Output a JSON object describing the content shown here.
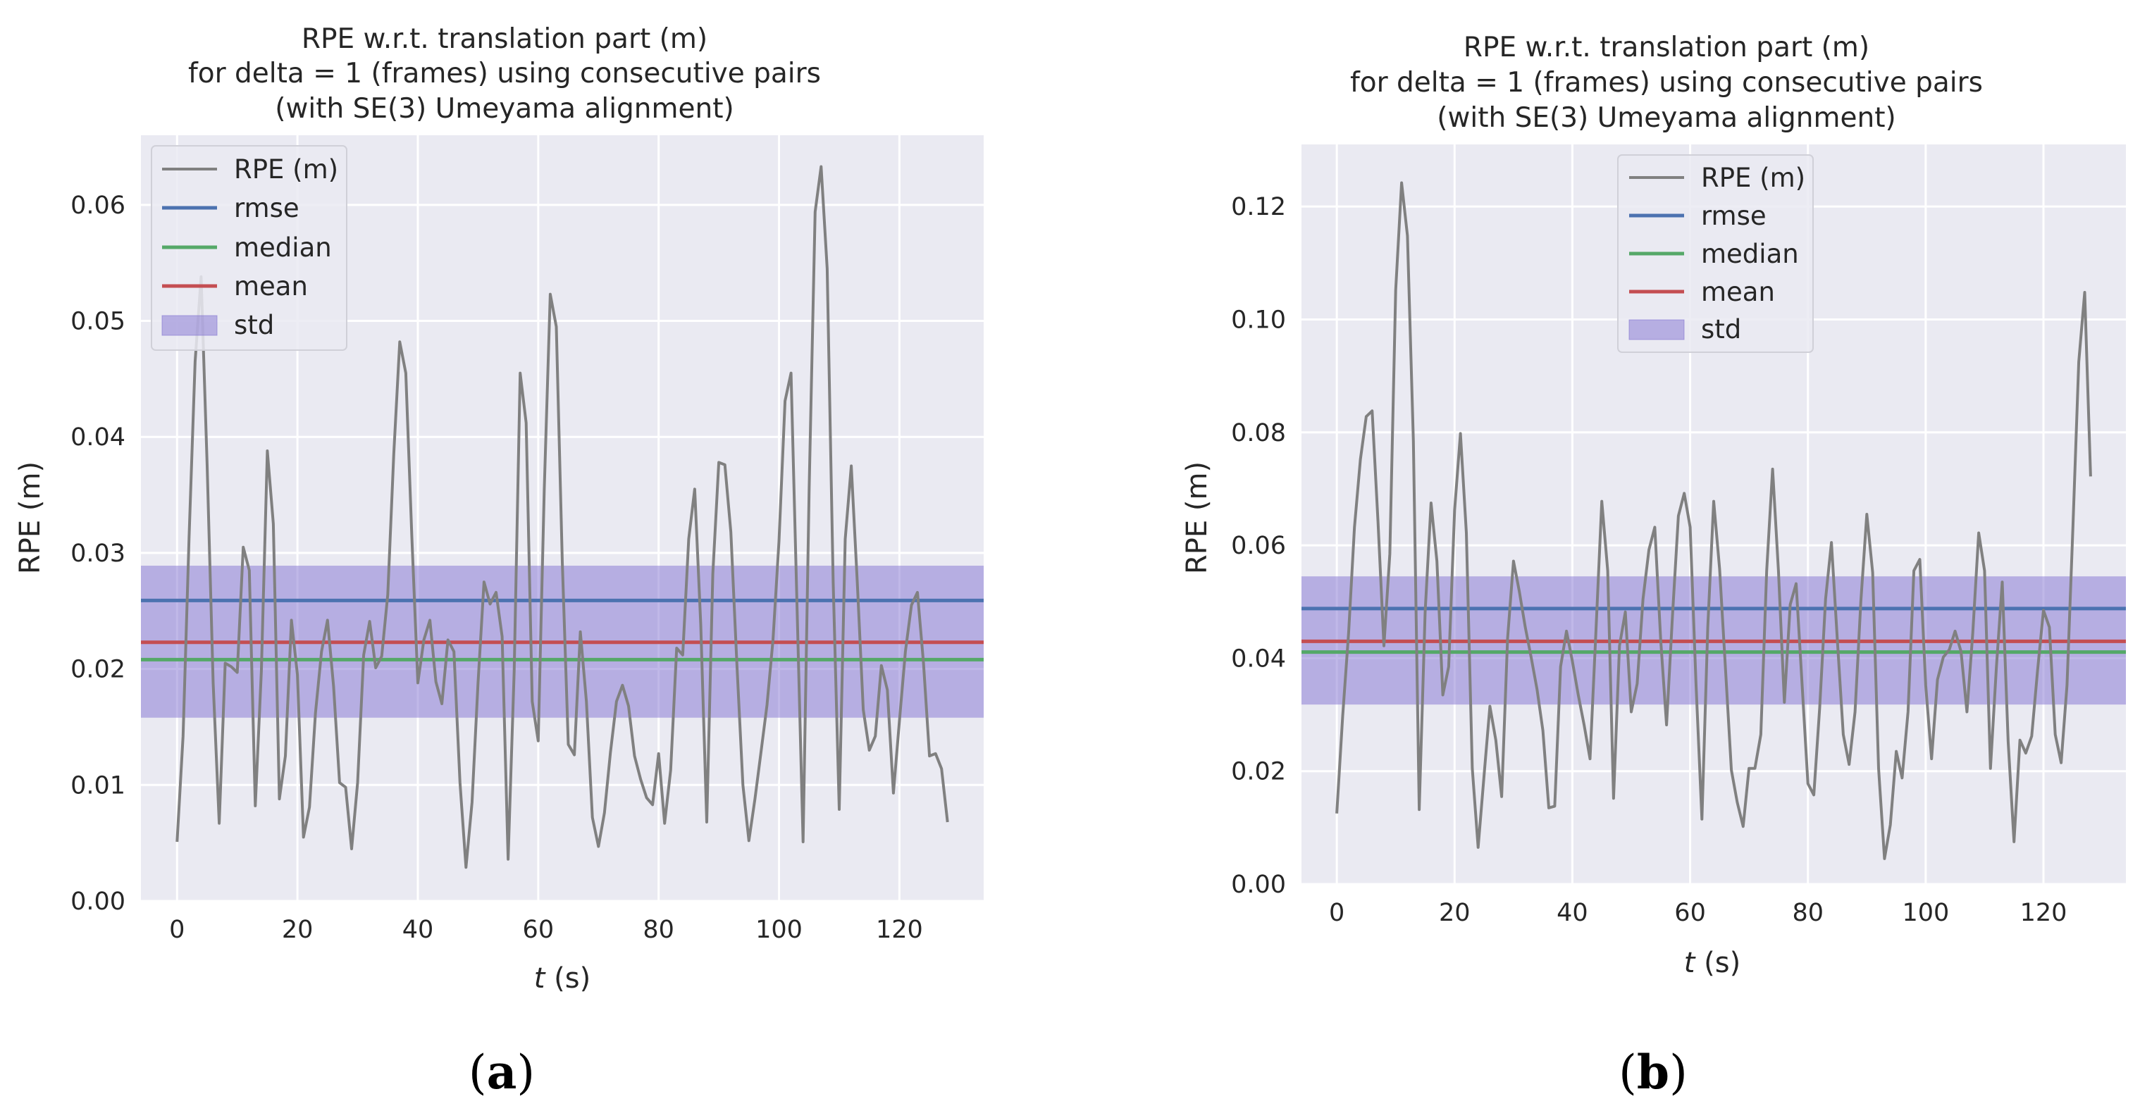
{
  "chart_data": [
    {
      "type": "line",
      "panel": "a",
      "title": [
        "RPE w.r.t. translation part (m)",
        "for delta = 1 (frames) using consecutive pairs",
        "(with SE(3) Umeyama alignment)"
      ],
      "xlabel_italic": "t",
      "xlabel_unit": " (s)",
      "ylabel": "RPE (m)",
      "xlim": [
        -6,
        134
      ],
      "ylim": [
        0,
        0.066
      ],
      "xticks": [
        0,
        20,
        40,
        60,
        80,
        100,
        120
      ],
      "yticks": [
        0.0,
        0.01,
        0.02,
        0.03,
        0.04,
        0.05,
        0.06
      ],
      "ytick_labels": [
        "0.00",
        "0.01",
        "0.02",
        "0.03",
        "0.04",
        "0.05",
        "0.06"
      ],
      "legend": [
        "RPE (m)",
        "rmse",
        "median",
        "mean",
        "std"
      ],
      "legend_position": "top-left",
      "stats": {
        "rmse": 0.0259,
        "median": 0.0208,
        "mean": 0.0223,
        "std_low": 0.0158,
        "std_high": 0.0289
      },
      "series": [
        {
          "name": "RPE (m)",
          "values": [
            0.0051,
            0.0142,
            0.0313,
            0.0465,
            0.0538,
            0.0375,
            0.0188,
            0.0067,
            0.0205,
            0.0202,
            0.0197,
            0.0305,
            0.0285,
            0.0082,
            0.0198,
            0.0388,
            0.0325,
            0.0088,
            0.0125,
            0.0242,
            0.0195,
            0.0055,
            0.0081,
            0.0162,
            0.0215,
            0.0242,
            0.0185,
            0.0102,
            0.0098,
            0.0045,
            0.0102,
            0.0212,
            0.0241,
            0.0201,
            0.0211,
            0.0264,
            0.0385,
            0.0482,
            0.0455,
            0.0315,
            0.0188,
            0.0225,
            0.0242,
            0.0189,
            0.017,
            0.0225,
            0.0215,
            0.0102,
            0.0029,
            0.0085,
            0.0188,
            0.0275,
            0.0256,
            0.0266,
            0.0228,
            0.0036,
            0.0198,
            0.0455,
            0.0412,
            0.0172,
            0.0138,
            0.0355,
            0.0523,
            0.0495,
            0.0292,
            0.0135,
            0.0126,
            0.0232,
            0.0172,
            0.0072,
            0.0047,
            0.0076,
            0.0128,
            0.0172,
            0.0186,
            0.0168,
            0.0125,
            0.0105,
            0.0089,
            0.0083,
            0.0127,
            0.0067,
            0.0113,
            0.0218,
            0.0212,
            0.0312,
            0.0355,
            0.0238,
            0.0068,
            0.0282,
            0.0378,
            0.0376,
            0.0318,
            0.0205,
            0.01,
            0.0052,
            0.0088,
            0.0128,
            0.0169,
            0.0225,
            0.031,
            0.0431,
            0.0455,
            0.0252,
            0.0051,
            0.0355,
            0.0594,
            0.0633,
            0.0545,
            0.0275,
            0.0079,
            0.0312,
            0.0375,
            0.0275,
            0.0165,
            0.013,
            0.0142,
            0.0203,
            0.0182,
            0.0093,
            0.0155,
            0.0215,
            0.0255,
            0.0266,
            0.0205,
            0.0125,
            0.0127,
            0.0114,
            0.0068
          ]
        }
      ]
    },
    {
      "type": "line",
      "panel": "b",
      "title": [
        "RPE w.r.t. translation part (m)",
        "for delta = 1 (frames) using consecutive pairs",
        "(with SE(3) Umeyama alignment)"
      ],
      "xlabel_italic": "t",
      "xlabel_unit": " (s)",
      "ylabel": "RPE (m)",
      "xlim": [
        -6,
        134
      ],
      "ylim": [
        0,
        0.131
      ],
      "xticks": [
        0,
        20,
        40,
        60,
        80,
        100,
        120
      ],
      "yticks": [
        0.0,
        0.02,
        0.04,
        0.06,
        0.08,
        0.1,
        0.12
      ],
      "ytick_labels": [
        "0.00",
        "0.02",
        "0.04",
        "0.06",
        "0.08",
        "0.10",
        "0.12"
      ],
      "legend": [
        "RPE (m)",
        "rmse",
        "median",
        "mean",
        "std"
      ],
      "legend_position": "top-center",
      "stats": {
        "rmse": 0.0488,
        "median": 0.0411,
        "mean": 0.043,
        "std_low": 0.0318,
        "std_high": 0.0545
      },
      "series": [
        {
          "name": "RPE (m)",
          "values": [
            0.0125,
            0.0298,
            0.0445,
            0.0632,
            0.0752,
            0.0828,
            0.0838,
            0.0642,
            0.0422,
            0.0585,
            0.1052,
            0.1242,
            0.1148,
            0.0785,
            0.0132,
            0.0482,
            0.0675,
            0.0572,
            0.0335,
            0.0385,
            0.0662,
            0.0798,
            0.0622,
            0.0205,
            0.0065,
            0.0192,
            0.0315,
            0.0255,
            0.0155,
            0.0435,
            0.0572,
            0.0518,
            0.0455,
            0.0402,
            0.0345,
            0.0272,
            0.0135,
            0.0138,
            0.0385,
            0.0448,
            0.0395,
            0.0335,
            0.0282,
            0.0222,
            0.0448,
            0.0678,
            0.0555,
            0.0152,
            0.0422,
            0.0482,
            0.0305,
            0.0355,
            0.0505,
            0.0592,
            0.0632,
            0.0432,
            0.0282,
            0.0475,
            0.0652,
            0.0692,
            0.0632,
            0.0355,
            0.0115,
            0.0455,
            0.0678,
            0.0558,
            0.0382,
            0.0202,
            0.0145,
            0.0102,
            0.0205,
            0.0205,
            0.0265,
            0.0555,
            0.0735,
            0.0555,
            0.0322,
            0.0495,
            0.0532,
            0.0355,
            0.0178,
            0.0158,
            0.0312,
            0.0505,
            0.0605,
            0.0432,
            0.0265,
            0.0212,
            0.0305,
            0.0502,
            0.0655,
            0.0552,
            0.0205,
            0.0045,
            0.0105,
            0.0235,
            0.0188,
            0.0305,
            0.0555,
            0.0575,
            0.0352,
            0.0222,
            0.0362,
            0.0402,
            0.0415,
            0.0448,
            0.0412,
            0.0305,
            0.0445,
            0.0622,
            0.0555,
            0.0205,
            0.0382,
            0.0535,
            0.0252,
            0.0075,
            0.0255,
            0.0232,
            0.0262,
            0.0378,
            0.0485,
            0.0455,
            0.0265,
            0.0215,
            0.0352,
            0.0632,
            0.0925,
            0.1048,
            0.0722
          ]
        }
      ]
    }
  ],
  "captions": {
    "a": "a",
    "b": "b"
  }
}
